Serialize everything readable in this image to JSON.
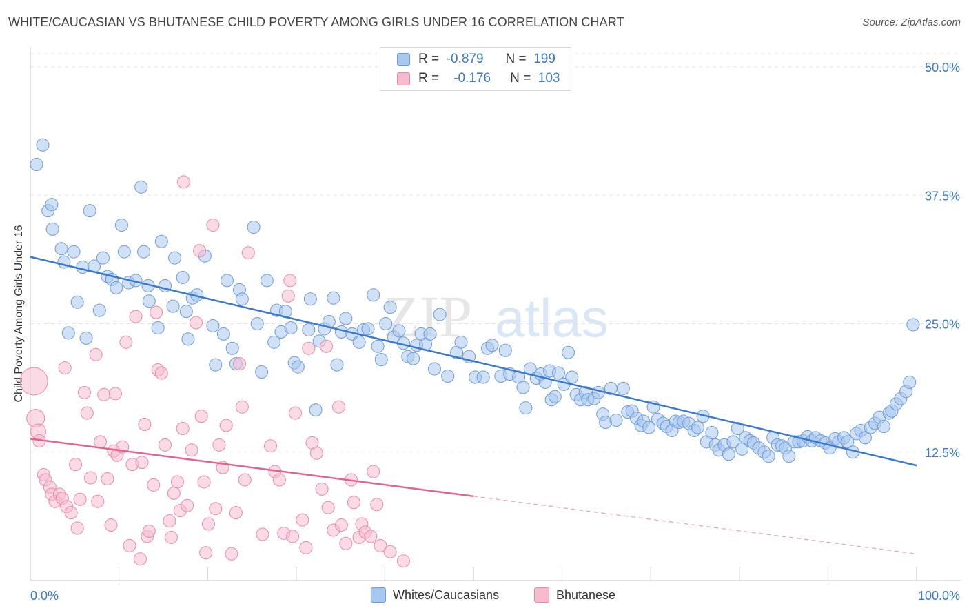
{
  "title": "WHITE/CAUCASIAN VS BHUTANESE CHILD POVERTY AMONG GIRLS UNDER 16 CORRELATION CHART",
  "source": "Source: ZipAtlas.com",
  "watermark": {
    "part1": "ZIP",
    "part2": "atlas"
  },
  "legend": {
    "rows": [
      {
        "r_label": "R =",
        "r_value": "-0.879",
        "n_label": "N =",
        "n_value": "199",
        "color": "#a9c8ef",
        "border": "#6b9ad8"
      },
      {
        "r_label": "R =",
        "r_value": "-0.176",
        "n_label": "N =",
        "n_value": "103",
        "color": "#f6bccd",
        "border": "#e78aa6"
      }
    ]
  },
  "chart_data": {
    "type": "scatter",
    "title": "WHITE/CAUCASIAN VS BHUTANESE CHILD POVERTY AMONG GIRLS UNDER 16 CORRELATION CHART",
    "xlabel": "",
    "ylabel": "Child Poverty Among Girls Under 16",
    "xlim": [
      0,
      100
    ],
    "ylim": [
      0,
      50
    ],
    "x_tick_labels": {
      "min": "0.0%",
      "max": "100.0%"
    },
    "y_ticks": [
      {
        "value": 12.5,
        "label": "12.5%"
      },
      {
        "value": 25.0,
        "label": "25.0%"
      },
      {
        "value": 37.5,
        "label": "37.5%"
      },
      {
        "value": 50.0,
        "label": "50.0%"
      }
    ],
    "series": [
      {
        "name": "Whites/Caucasians",
        "color": "#a9c8ef",
        "stroke": "#6b9ad8",
        "trend": {
          "x": [
            0,
            100
          ],
          "y": [
            31.5,
            11.2
          ],
          "color": "#3a78c9"
        },
        "points": [
          [
            0.7,
            40.5
          ],
          [
            1.4,
            42.4
          ],
          [
            2,
            36
          ],
          [
            2.4,
            36.6
          ],
          [
            2.5,
            34.2
          ],
          [
            3.5,
            32.3
          ],
          [
            3.8,
            31
          ],
          [
            4.3,
            24.1
          ],
          [
            4.9,
            32
          ],
          [
            5.3,
            27.1
          ],
          [
            5.9,
            30.5
          ],
          [
            6.3,
            23.6
          ],
          [
            6.7,
            36
          ],
          [
            7.2,
            30.6
          ],
          [
            7.8,
            26.3
          ],
          [
            8.2,
            31.4
          ],
          [
            8.7,
            29.6
          ],
          [
            9.2,
            29.3
          ],
          [
            9.7,
            28.5
          ],
          [
            10.3,
            34.6
          ],
          [
            10.6,
            32
          ],
          [
            11.1,
            29
          ],
          [
            11.9,
            29.2
          ],
          [
            12.5,
            38.3
          ],
          [
            12.8,
            32
          ],
          [
            13.3,
            28.7
          ],
          [
            13.4,
            27.2
          ],
          [
            14.4,
            24.6
          ],
          [
            14.8,
            33
          ],
          [
            15.2,
            28.7
          ],
          [
            16.1,
            26.7
          ],
          [
            16.3,
            31.4
          ],
          [
            17.2,
            29.5
          ],
          [
            17.6,
            26.2
          ],
          [
            17.8,
            23.5
          ],
          [
            18.3,
            27.5
          ],
          [
            18.8,
            27.8
          ],
          [
            19.7,
            31.6
          ],
          [
            20.6,
            24.8
          ],
          [
            20.9,
            21
          ],
          [
            21.8,
            24
          ],
          [
            22.2,
            29.2
          ],
          [
            22.8,
            22.6
          ],
          [
            23.2,
            21.1
          ],
          [
            23.6,
            28.3
          ],
          [
            23.9,
            27.4
          ],
          [
            25.2,
            34.4
          ],
          [
            25.6,
            25
          ],
          [
            26.1,
            20.3
          ],
          [
            26.7,
            29.2
          ],
          [
            27.5,
            23.2
          ],
          [
            27.8,
            26.3
          ],
          [
            28.3,
            24.2
          ],
          [
            28.8,
            26.2
          ],
          [
            29.4,
            24.6
          ],
          [
            29.8,
            21.2
          ],
          [
            30.2,
            20.8
          ],
          [
            31.4,
            24.4
          ],
          [
            31.6,
            27.4
          ],
          [
            32.2,
            16.6
          ],
          [
            32.6,
            23.3
          ],
          [
            33.2,
            24.5
          ],
          [
            33.7,
            25.2
          ],
          [
            34.2,
            27.5
          ],
          [
            34.6,
            21
          ],
          [
            35.1,
            24.2
          ],
          [
            35.6,
            25.5
          ],
          [
            36.3,
            24
          ],
          [
            37.1,
            23.2
          ],
          [
            37.6,
            24.4
          ],
          [
            38.1,
            24.5
          ],
          [
            38.7,
            27.8
          ],
          [
            39.2,
            22.8
          ],
          [
            39.6,
            21.5
          ],
          [
            40.1,
            25
          ],
          [
            40.6,
            26.6
          ],
          [
            41,
            23.7
          ],
          [
            41.6,
            24.3
          ],
          [
            42.1,
            23.1
          ],
          [
            42.6,
            21.8
          ],
          [
            43.2,
            21.6
          ],
          [
            43.6,
            22.9
          ],
          [
            44.1,
            24
          ],
          [
            44.6,
            23
          ],
          [
            45.1,
            24
          ],
          [
            45.6,
            20.6
          ],
          [
            46.2,
            25.9
          ],
          [
            47.1,
            19.9
          ],
          [
            48.1,
            22.2
          ],
          [
            48.6,
            23.2
          ],
          [
            49.5,
            21.8
          ],
          [
            50.2,
            19.8
          ],
          [
            51.1,
            19.8
          ],
          [
            51.6,
            22.6
          ],
          [
            52.1,
            22.9
          ],
          [
            53.1,
            19.9
          ],
          [
            53.6,
            22.4
          ],
          [
            54.1,
            20.1
          ],
          [
            55.1,
            19.8
          ],
          [
            55.6,
            18.8
          ],
          [
            55.9,
            16.8
          ],
          [
            56.4,
            20.6
          ],
          [
            57.1,
            19.7
          ],
          [
            57.6,
            20.1
          ],
          [
            58.1,
            19.3
          ],
          [
            58.6,
            20.4
          ],
          [
            58.8,
            17.6
          ],
          [
            59.2,
            17.9
          ],
          [
            59.6,
            20.2
          ],
          [
            60.2,
            19.1
          ],
          [
            60.7,
            22.2
          ],
          [
            61.1,
            19.8
          ],
          [
            61.6,
            18.1
          ],
          [
            62.1,
            17.6
          ],
          [
            62.6,
            18.3
          ],
          [
            62.9,
            17.6
          ],
          [
            63.6,
            17.7
          ],
          [
            64.1,
            18.3
          ],
          [
            64.6,
            16.2
          ],
          [
            64.9,
            15.4
          ],
          [
            65.5,
            18.7
          ],
          [
            66.1,
            15.6
          ],
          [
            66.9,
            18.7
          ],
          [
            67.4,
            16.4
          ],
          [
            67.9,
            16.5
          ],
          [
            68.4,
            15.8
          ],
          [
            68.9,
            15.1
          ],
          [
            69.2,
            15.5
          ],
          [
            69.8,
            14.9
          ],
          [
            70.3,
            16.9
          ],
          [
            70.8,
            15.7
          ],
          [
            71.4,
            15.3
          ],
          [
            71.8,
            15
          ],
          [
            72.4,
            14.6
          ],
          [
            72.8,
            15.5
          ],
          [
            73.2,
            15.4
          ],
          [
            73.7,
            15.5
          ],
          [
            74.3,
            15.3
          ],
          [
            74.9,
            14.6
          ],
          [
            75.3,
            14.9
          ],
          [
            75.9,
            16
          ],
          [
            76.3,
            13.5
          ],
          [
            76.9,
            14.4
          ],
          [
            77.3,
            13.2
          ],
          [
            77.7,
            12.7
          ],
          [
            78.3,
            13.2
          ],
          [
            78.8,
            12.3
          ],
          [
            79.3,
            13.5
          ],
          [
            79.8,
            14.8
          ],
          [
            80.3,
            12.8
          ],
          [
            80.7,
            13.9
          ],
          [
            81.2,
            13.6
          ],
          [
            81.6,
            13.4
          ],
          [
            82.2,
            12.9
          ],
          [
            82.8,
            12.5
          ],
          [
            83.3,
            12.1
          ],
          [
            83.8,
            13.9
          ],
          [
            84.3,
            13.2
          ],
          [
            84.8,
            13.1
          ],
          [
            85.2,
            12.9
          ],
          [
            85.6,
            12.1
          ],
          [
            86.2,
            13.5
          ],
          [
            86.7,
            13.5
          ],
          [
            87.2,
            13.6
          ],
          [
            87.7,
            14
          ],
          [
            88.2,
            13.6
          ],
          [
            88.6,
            13.9
          ],
          [
            89.2,
            13.6
          ],
          [
            89.7,
            13.4
          ],
          [
            90.2,
            12.9
          ],
          [
            90.8,
            13.8
          ],
          [
            91.2,
            13.5
          ],
          [
            91.8,
            13.9
          ],
          [
            92.2,
            13.5
          ],
          [
            92.8,
            12.5
          ],
          [
            93.2,
            14.3
          ],
          [
            93.7,
            14.6
          ],
          [
            94.2,
            13.9
          ],
          [
            94.8,
            14.9
          ],
          [
            95.3,
            15.3
          ],
          [
            95.8,
            15.9
          ],
          [
            96.3,
            15
          ],
          [
            96.9,
            16.3
          ],
          [
            97.2,
            16.5
          ],
          [
            97.7,
            17.2
          ],
          [
            98.2,
            17.7
          ],
          [
            98.8,
            18.4
          ],
          [
            99.2,
            19.3
          ],
          [
            99.6,
            24.9
          ]
        ]
      },
      {
        "name": "Bhutanese",
        "color": "#f6bccd",
        "stroke": "#e78aa6",
        "trend": {
          "x": [
            0,
            50
          ],
          "y": [
            13.8,
            8.2
          ],
          "color": "#e0648c",
          "dashed_to": {
            "x": 100,
            "y": 2.6
          }
        },
        "points": [
          [
            0.4,
            19.4
          ],
          [
            0.6,
            15.8
          ],
          [
            0.9,
            14.5
          ],
          [
            1,
            13.6
          ],
          [
            1.5,
            10.3
          ],
          [
            1.7,
            9.8
          ],
          [
            2.2,
            9.1
          ],
          [
            2.4,
            8.4
          ],
          [
            2.8,
            7.7
          ],
          [
            3.3,
            8.4
          ],
          [
            3.6,
            8
          ],
          [
            3.9,
            20.7
          ],
          [
            4.1,
            7.2
          ],
          [
            4.6,
            6.6
          ],
          [
            5.1,
            11.3
          ],
          [
            5.3,
            5.1
          ],
          [
            5.6,
            7.9
          ],
          [
            6.1,
            18.3
          ],
          [
            6.4,
            16.3
          ],
          [
            6.8,
            10
          ],
          [
            7.4,
            22
          ],
          [
            7.6,
            7.7
          ],
          [
            7.9,
            13.5
          ],
          [
            8.3,
            18.1
          ],
          [
            8.7,
            9.9
          ],
          [
            9.1,
            5.4
          ],
          [
            9.4,
            12.6
          ],
          [
            9.6,
            18.2
          ],
          [
            9.8,
            12.2
          ],
          [
            10.4,
            13
          ],
          [
            10.8,
            23.2
          ],
          [
            11.2,
            3.4
          ],
          [
            11.5,
            11.3
          ],
          [
            11.9,
            25.7
          ],
          [
            12.4,
            2.1
          ],
          [
            12.6,
            11.5
          ],
          [
            12.9,
            15.2
          ],
          [
            13.2,
            4.3
          ],
          [
            13.4,
            4.8
          ],
          [
            13.9,
            9.3
          ],
          [
            14.2,
            26.1
          ],
          [
            14.4,
            20.5
          ],
          [
            14.8,
            20.2
          ],
          [
            15.2,
            13.2
          ],
          [
            15.7,
            5.8
          ],
          [
            15.9,
            4.2
          ],
          [
            16.2,
            8.5
          ],
          [
            16.6,
            9.6
          ],
          [
            16.9,
            6.8
          ],
          [
            17.2,
            14.8
          ],
          [
            17.7,
            7.3
          ],
          [
            18.2,
            12.7
          ],
          [
            18.7,
            25.1
          ],
          [
            19.1,
            32.1
          ],
          [
            19.3,
            16
          ],
          [
            19.6,
            9.6
          ],
          [
            19.8,
            2.7
          ],
          [
            20.1,
            5.5
          ],
          [
            20.6,
            34.6
          ],
          [
            20.9,
            7
          ],
          [
            21.3,
            13.2
          ],
          [
            21.7,
            11
          ],
          [
            22.1,
            15.1
          ],
          [
            22.7,
            2.6
          ],
          [
            23.2,
            6.6
          ],
          [
            23.6,
            21.1
          ],
          [
            23.9,
            16.9
          ],
          [
            24.2,
            9.8
          ],
          [
            24.6,
            31.9
          ],
          [
            26.2,
            4.5
          ],
          [
            27.1,
            13.1
          ],
          [
            27.6,
            10.6
          ],
          [
            28.1,
            9.8
          ],
          [
            28.6,
            4.6
          ],
          [
            29.1,
            27.7
          ],
          [
            29.6,
            4.3
          ],
          [
            29.9,
            16.3
          ],
          [
            30.7,
            5.9
          ],
          [
            31.1,
            3.2
          ],
          [
            31.4,
            22.6
          ],
          [
            31.8,
            13.4
          ],
          [
            32.3,
            12.4
          ],
          [
            32.9,
            8.9
          ],
          [
            33.4,
            22.8
          ],
          [
            33.6,
            7.1
          ],
          [
            34.2,
            4.9
          ],
          [
            34.8,
            16.9
          ],
          [
            35.1,
            5.4
          ],
          [
            35.6,
            3.6
          ],
          [
            36.2,
            9.8
          ],
          [
            36.5,
            7.6
          ],
          [
            37.1,
            4.2
          ],
          [
            37.4,
            5.5
          ],
          [
            37.8,
            4.7
          ],
          [
            38.4,
            4.3
          ],
          [
            38.7,
            10.6
          ],
          [
            39.1,
            7.4
          ],
          [
            39.5,
            3.4
          ],
          [
            40.6,
            2.8
          ],
          [
            42.1,
            1.9
          ],
          [
            17.3,
            38.8
          ],
          [
            29.3,
            29.2
          ]
        ]
      }
    ]
  },
  "bottom_legend": [
    {
      "label": "Whites/Caucasians",
      "color": "#a9c8ef",
      "border": "#6b9ad8"
    },
    {
      "label": "Bhutanese",
      "color": "#f6bccd",
      "border": "#e78aa6"
    }
  ]
}
